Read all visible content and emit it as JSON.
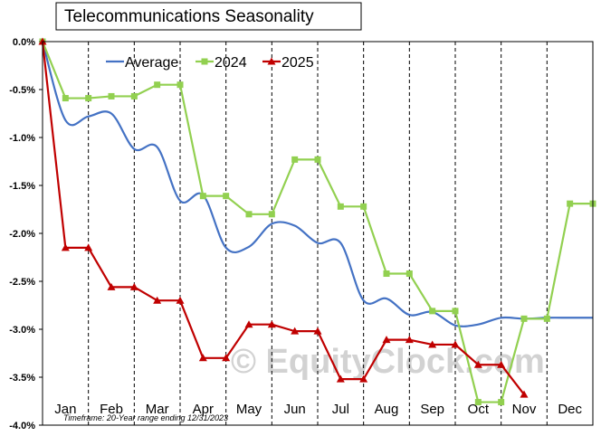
{
  "chart_data": {
    "type": "line",
    "title": "Telecommunications Seasonality",
    "footnote": "Timeframe: 20-Year range ending 12/31/2023",
    "watermark": "© EquityClock.com",
    "categories": [
      "Jan",
      "Feb",
      "Mar",
      "Apr",
      "May",
      "Jun",
      "Jul",
      "Aug",
      "Sep",
      "Oct",
      "Nov",
      "Dec"
    ],
    "y_ticks": [
      "0.0%",
      "-0.5%",
      "-1.0%",
      "-1.5%",
      "-2.0%",
      "-2.5%",
      "-3.0%",
      "-3.5%",
      "-4.0%"
    ],
    "ylim": [
      -4.0,
      0.0
    ],
    "x_range": [
      0,
      12
    ],
    "grid": "vertical-dashed",
    "legend_position": "top",
    "series": [
      {
        "name": "Average",
        "color": "#4472c4",
        "marker": "none",
        "smooth": true,
        "x": [
          0,
          0.5,
          1.0,
          1.5,
          2.0,
          2.5,
          3.0,
          3.5,
          4.0,
          4.5,
          5.0,
          5.5,
          6.0,
          6.5,
          7.0,
          7.5,
          8.0,
          8.5,
          9.0,
          9.5,
          10.0,
          10.5,
          11.0,
          11.5,
          12.0
        ],
        "y": [
          0.0,
          -0.82,
          -0.78,
          -0.75,
          -1.12,
          -1.1,
          -1.66,
          -1.6,
          -2.15,
          -2.14,
          -1.9,
          -1.92,
          -2.1,
          -2.1,
          -2.7,
          -2.68,
          -2.85,
          -2.82,
          -2.96,
          -2.95,
          -2.88,
          -2.89,
          -2.88,
          -2.88,
          -2.88
        ]
      },
      {
        "name": "2024",
        "color": "#92d050",
        "marker": "square",
        "smooth": false,
        "x": [
          0,
          0.5,
          1.0,
          1.5,
          2.0,
          2.5,
          3.0,
          3.5,
          4.0,
          4.5,
          5.0,
          5.5,
          6.0,
          6.5,
          7.0,
          7.5,
          8.0,
          8.5,
          9.0,
          9.5,
          10.0,
          10.5,
          11.0,
          11.5,
          12.0
        ],
        "y": [
          0.0,
          -0.59,
          -0.59,
          -0.57,
          -0.57,
          -0.45,
          -0.45,
          -1.61,
          -1.61,
          -1.8,
          -1.8,
          -1.23,
          -1.23,
          -1.72,
          -1.72,
          -2.42,
          -2.42,
          -2.81,
          -2.81,
          -3.76,
          -3.76,
          -2.89,
          -2.89,
          -1.69,
          -1.69
        ]
      },
      {
        "name": "2025",
        "color": "#c00000",
        "marker": "triangle",
        "smooth": false,
        "x": [
          0,
          0.5,
          1.0,
          1.5,
          2.0,
          2.5,
          3.0,
          3.5,
          4.0,
          4.5,
          5.0,
          5.5,
          6.0,
          6.5,
          7.0,
          7.5,
          8.0,
          8.5,
          9.0,
          9.5,
          10.0,
          10.5
        ],
        "y": [
          0.0,
          -2.15,
          -2.15,
          -2.56,
          -2.56,
          -2.7,
          -2.7,
          -3.3,
          -3.3,
          -2.95,
          -2.95,
          -3.02,
          -3.02,
          -3.52,
          -3.52,
          -3.11,
          -3.11,
          -3.16,
          -3.16,
          -3.37,
          -3.37,
          -3.68
        ]
      }
    ]
  }
}
